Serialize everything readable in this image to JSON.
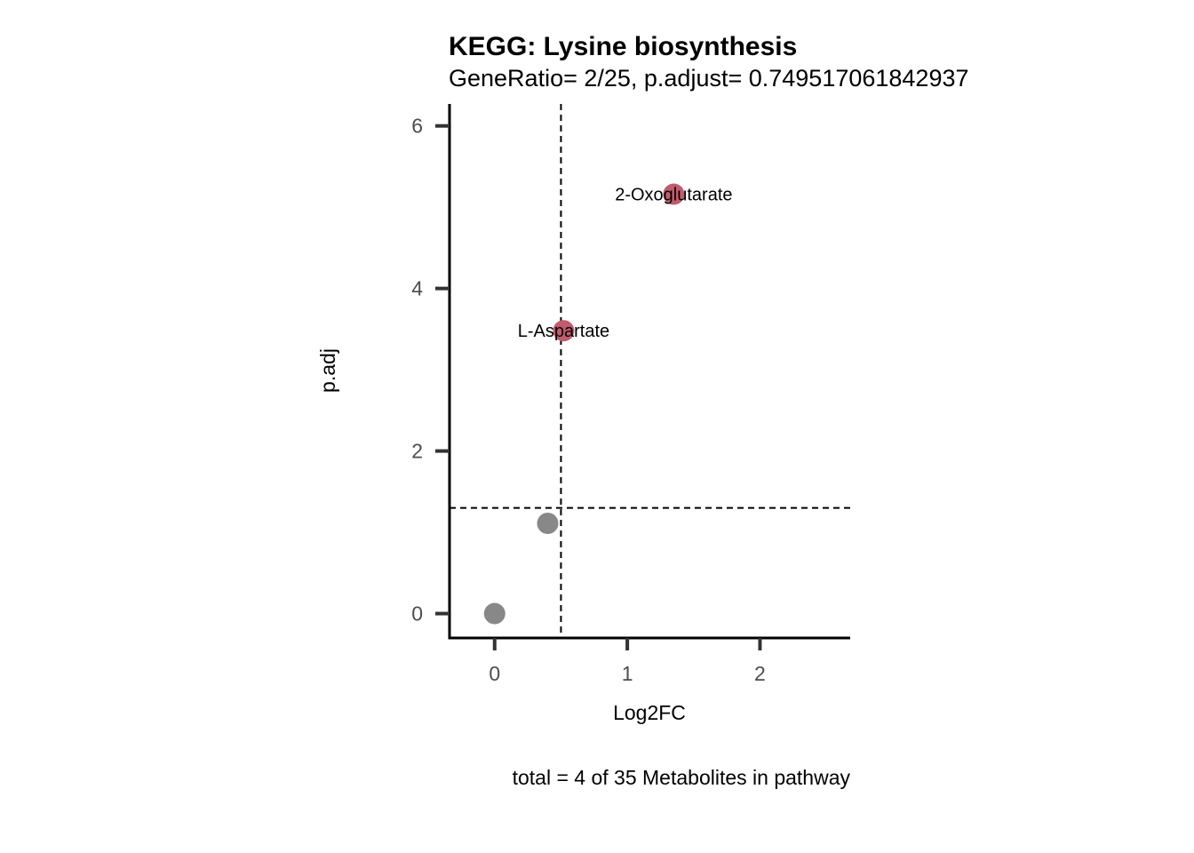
{
  "chart_data": {
    "type": "scatter",
    "title": "KEGG: Lysine biosynthesis",
    "subtitle": "GeneRatio= 2/25, p.adjust= 0.749517061842937",
    "xlabel": "Log2FC",
    "ylabel": "p.adj",
    "caption": "total = 4 of 35 Metabolites in pathway",
    "xlim": [
      -0.34,
      2.68
    ],
    "ylim": [
      -0.3,
      6.27
    ],
    "x_ticks": [
      0,
      1,
      2
    ],
    "x_tick_labels": [
      "0",
      "1",
      "2"
    ],
    "y_ticks": [
      0,
      2,
      4,
      6
    ],
    "y_tick_labels": [
      "0",
      "2",
      "4",
      "6"
    ],
    "thresholds": {
      "x": 0.5,
      "y": 1.3
    },
    "colors": {
      "significant": "#c25b6e",
      "not_significant": "#888888",
      "axis": "#000000",
      "tick": "#333333"
    },
    "points": [
      {
        "x": 0.0,
        "y": 0.0,
        "label": "",
        "significant": false
      },
      {
        "x": 0.4,
        "y": 1.11,
        "label": "",
        "significant": false
      },
      {
        "x": 0.52,
        "y": 3.48,
        "label": "L-Aspartate",
        "significant": true
      },
      {
        "x": 1.35,
        "y": 5.16,
        "label": "2-Oxoglutarate",
        "significant": true
      }
    ]
  }
}
